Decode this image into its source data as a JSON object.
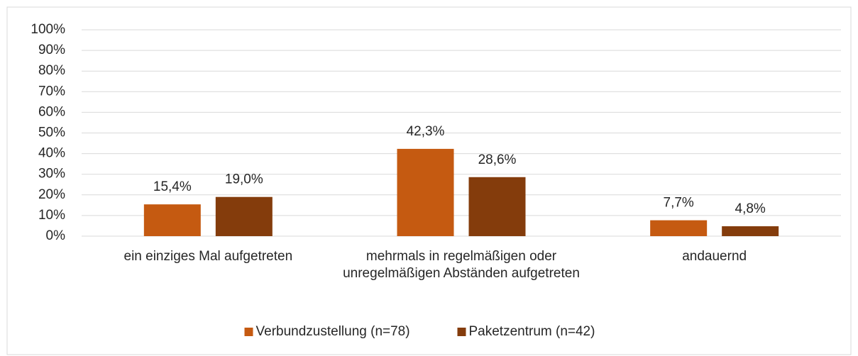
{
  "chart_data": {
    "type": "bar",
    "categories": [
      "ein einziges Mal aufgetreten",
      "mehrmals in regelmäßigen oder unregelmäßigen Abständen aufgetreten",
      "andauernd"
    ],
    "series": [
      {
        "name": "Verbundzustellung (n=78)",
        "color": "#c55a11",
        "values": [
          15.4,
          42.3,
          7.7
        ],
        "value_labels": [
          "15,4%",
          "42,3%",
          "7,7%"
        ]
      },
      {
        "name": "Paketzentrum (n=42)",
        "color": "#843c0c",
        "values": [
          19.0,
          28.6,
          4.8
        ],
        "value_labels": [
          "19,0%",
          "28,6%",
          "4,8%"
        ]
      }
    ],
    "ylim": [
      0,
      100
    ],
    "yticks": [
      {
        "value": 0,
        "label": "0%"
      },
      {
        "value": 10,
        "label": "10%"
      },
      {
        "value": 20,
        "label": "20%"
      },
      {
        "value": 30,
        "label": "30%"
      },
      {
        "value": 40,
        "label": "40%"
      },
      {
        "value": 50,
        "label": "50%"
      },
      {
        "value": 60,
        "label": "60%"
      },
      {
        "value": 70,
        "label": "70%"
      },
      {
        "value": 80,
        "label": "80%"
      },
      {
        "value": 90,
        "label": "90%"
      },
      {
        "value": 100,
        "label": "100%"
      }
    ],
    "grid": true,
    "legend": "bottom"
  }
}
